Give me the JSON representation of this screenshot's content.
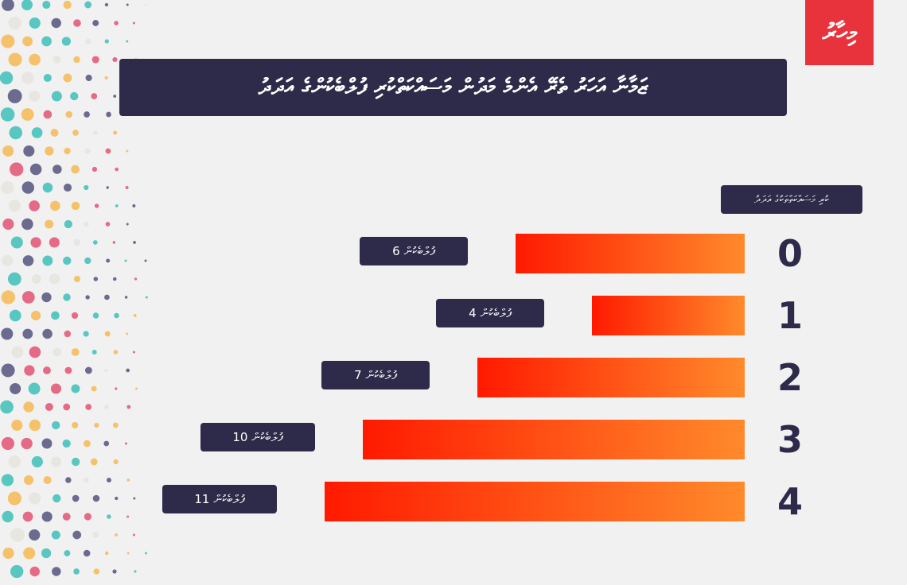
{
  "logo_text": "މިހާރު",
  "title": "ޒަމާނާ އަހަރު ތެރޭ އެންމެ މަދުން މަސައްކަތްކުރި ފުލްބެކުންގެ އަދަދު",
  "legend": "ކުރި މަސައްކަތްތަކުގެ އަދަދު",
  "colors": {
    "background": "#f1f1f1",
    "navy": "#2d2a4a",
    "bar_left": "#ff1a00",
    "bar_right": "#ff8a2b",
    "logo_red": "#e8323c"
  },
  "chart_data": {
    "type": "bar",
    "orientation": "horizontal",
    "direction": "right-to-left",
    "categories": [
      "0",
      "1",
      "2",
      "3",
      "4"
    ],
    "values": [
      6,
      4,
      7,
      10,
      11
    ],
    "unit_label": "ފުލްބެކުން",
    "value_labels": [
      "6 ފުލްބެކުން",
      "4 ފުލްބެކުން",
      "7 ފުލްބެކުން",
      "10 ފުލްބެކުން",
      "11 ފުލްބެކުން"
    ],
    "title": "ޒަމާނާ އަހަރު ތެރޭ އެންމެ މަދުން މަސައްކަތްކުރި ފުލްބެކުންގެ އަދަދު",
    "legend": "ކުރި މަސައްކަތްތަކުގެ އަދަދު",
    "xlim": [
      0,
      11
    ],
    "grid": false
  }
}
